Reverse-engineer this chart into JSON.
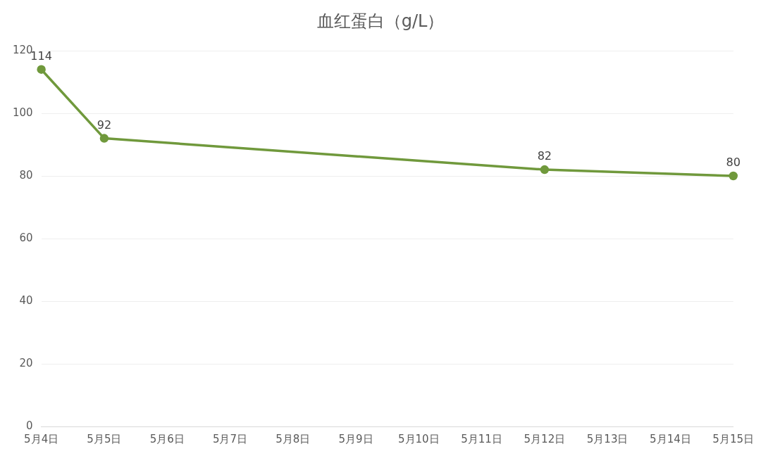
{
  "chart_data": {
    "type": "line",
    "title": "血红蛋白（g/L）",
    "categories": [
      "5月4日",
      "5月5日",
      "5月6日",
      "5月7日",
      "5月8日",
      "5月9日",
      "5月10日",
      "5月11日",
      "5月12日",
      "5月13日",
      "5月14日",
      "5月15日"
    ],
    "series": [
      {
        "color": "#70993c",
        "values": [
          114,
          92,
          null,
          null,
          null,
          null,
          null,
          null,
          82,
          null,
          null,
          80
        ]
      }
    ],
    "ylim": [
      0,
      120
    ],
    "yticks": [
      0,
      20,
      40,
      60,
      80,
      100,
      120
    ],
    "grid": "y",
    "marker": "circle",
    "data_labels": true
  }
}
